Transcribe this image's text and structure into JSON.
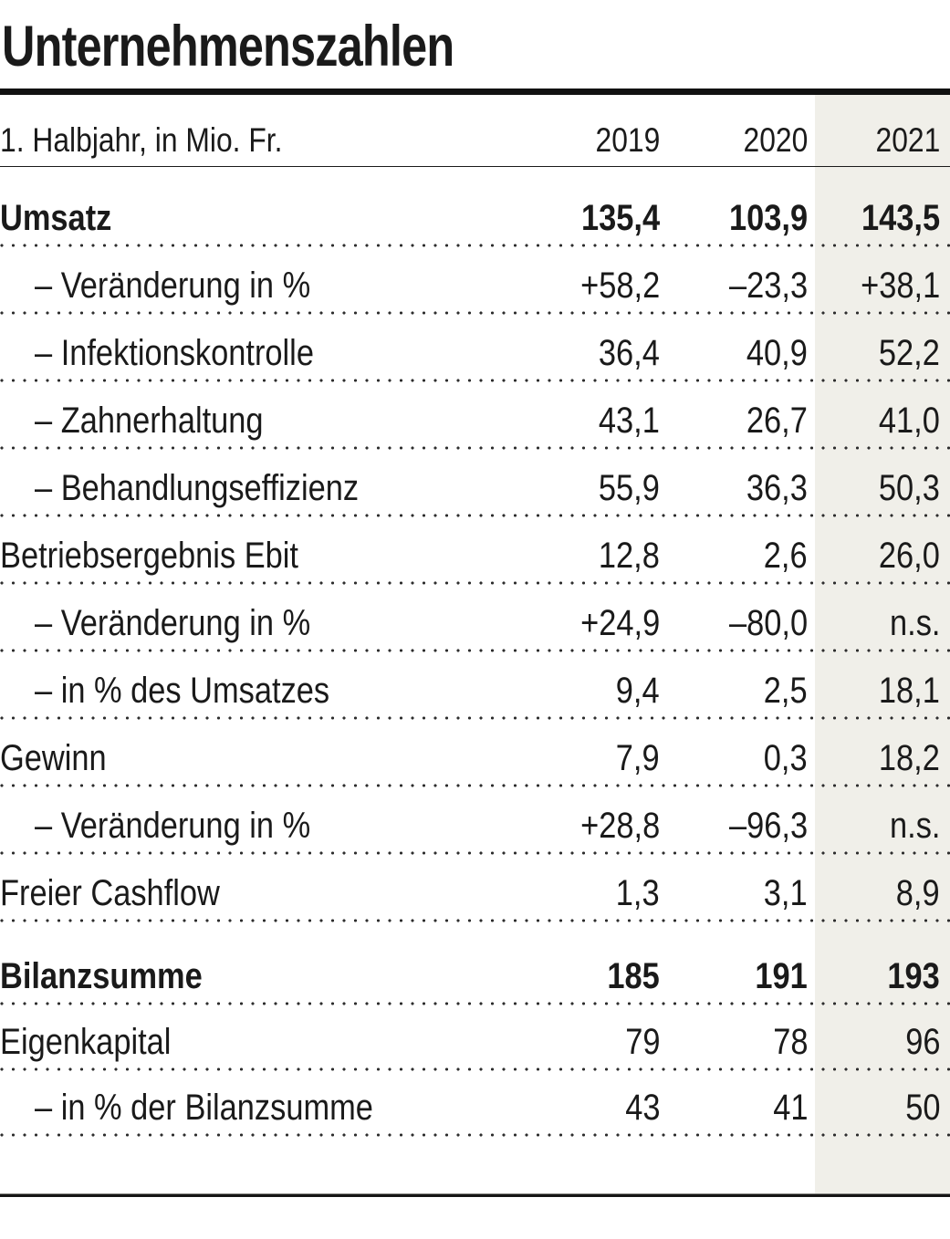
{
  "title": "Unternehmenszahlen",
  "table": {
    "header": {
      "label": "1. Halbjahr, in Mio. Fr.",
      "years": [
        "2019",
        "2020",
        "2021"
      ]
    },
    "rows": [
      {
        "label": "Umsatz",
        "bold": true,
        "indent": false,
        "first": true,
        "values": [
          "135,4",
          "103,9",
          "143,5"
        ]
      },
      {
        "label": "– Veränderung in %",
        "bold": false,
        "indent": true,
        "values": [
          "+58,2",
          "–23,3",
          "+38,1"
        ]
      },
      {
        "label": "– Infektionskontrolle",
        "bold": false,
        "indent": true,
        "values": [
          "36,4",
          "40,9",
          "52,2"
        ]
      },
      {
        "label": "– Zahnerhaltung",
        "bold": false,
        "indent": true,
        "values": [
          "43,1",
          "26,7",
          "41,0"
        ]
      },
      {
        "label": "– Behandlungseffizienz",
        "bold": false,
        "indent": true,
        "values": [
          "55,9",
          "36,3",
          "50,3"
        ]
      },
      {
        "label": "Betriebsergebnis Ebit",
        "bold": false,
        "indent": false,
        "values": [
          "12,8",
          "2,6",
          "26,0"
        ]
      },
      {
        "label": "– Veränderung in %",
        "bold": false,
        "indent": true,
        "values": [
          "+24,9",
          "–80,0",
          "n.s."
        ]
      },
      {
        "label": "– in % des Umsatzes",
        "bold": false,
        "indent": true,
        "values": [
          "9,4",
          "2,5",
          "18,1"
        ]
      },
      {
        "label": "Gewinn",
        "bold": false,
        "indent": false,
        "values": [
          "7,9",
          "0,3",
          "18,2"
        ]
      },
      {
        "label": "– Veränderung in %",
        "bold": false,
        "indent": true,
        "values": [
          "+28,8",
          "–96,3",
          "n.s."
        ]
      },
      {
        "label": "Freier Cashflow",
        "bold": false,
        "indent": false,
        "values": [
          "1,3",
          "3,1",
          "8,9"
        ]
      },
      {
        "label": "Bilanzsumme",
        "bold": true,
        "indent": false,
        "group_start": true,
        "values": [
          "185",
          "191",
          "193"
        ]
      },
      {
        "label": "Eigenkapital",
        "bold": false,
        "indent": false,
        "short": true,
        "values": [
          "79",
          "78",
          "96"
        ]
      },
      {
        "label": "– in % der Bilanzsumme",
        "bold": false,
        "indent": true,
        "short": true,
        "values": [
          "43",
          "41",
          "50"
        ]
      }
    ],
    "highlight_column": "2021",
    "colors": {
      "highlight_bg": "#f0efe9",
      "text": "#1a1a1a",
      "rule": "#111111",
      "dots": "#2e2e2e"
    }
  }
}
